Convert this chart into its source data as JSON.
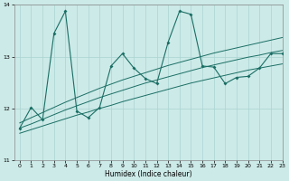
{
  "xlabel": "Humidex (Indice chaleur)",
  "x_values": [
    0,
    1,
    2,
    3,
    4,
    5,
    6,
    7,
    8,
    9,
    10,
    11,
    12,
    13,
    14,
    15,
    16,
    17,
    18,
    19,
    20,
    21,
    22,
    23
  ],
  "line1_y": [
    11.62,
    12.02,
    11.78,
    13.45,
    13.88,
    11.95,
    11.82,
    12.02,
    12.82,
    13.06,
    12.78,
    12.58,
    12.48,
    13.28,
    13.88,
    13.82,
    12.82,
    12.8,
    12.48,
    12.6,
    12.62,
    12.78,
    13.06,
    13.06
  ],
  "line2_y": [
    11.52,
    11.59,
    11.66,
    11.73,
    11.8,
    11.87,
    11.93,
    12.0,
    12.06,
    12.13,
    12.19,
    12.25,
    12.31,
    12.37,
    12.43,
    12.49,
    12.54,
    12.59,
    12.64,
    12.69,
    12.74,
    12.78,
    12.82,
    12.86
  ],
  "line3_y": [
    11.62,
    11.7,
    11.79,
    11.88,
    11.97,
    12.05,
    12.13,
    12.21,
    12.28,
    12.35,
    12.42,
    12.49,
    12.55,
    12.61,
    12.67,
    12.73,
    12.79,
    12.84,
    12.89,
    12.94,
    12.99,
    13.03,
    13.08,
    13.12
  ],
  "line4_y": [
    11.72,
    11.82,
    11.92,
    12.02,
    12.12,
    12.21,
    12.3,
    12.39,
    12.47,
    12.55,
    12.62,
    12.69,
    12.76,
    12.83,
    12.89,
    12.95,
    13.01,
    13.07,
    13.12,
    13.17,
    13.22,
    13.27,
    13.32,
    13.37
  ],
  "line_color": "#1a6e64",
  "bg_color": "#cceae8",
  "grid_color": "#aad4d0",
  "ylim": [
    11,
    14
  ],
  "xlim": [
    -0.5,
    23
  ],
  "yticks": [
    11,
    12,
    13,
    14
  ],
  "xticks": [
    0,
    1,
    2,
    3,
    4,
    5,
    6,
    7,
    8,
    9,
    10,
    11,
    12,
    13,
    14,
    15,
    16,
    17,
    18,
    19,
    20,
    21,
    22,
    23
  ]
}
